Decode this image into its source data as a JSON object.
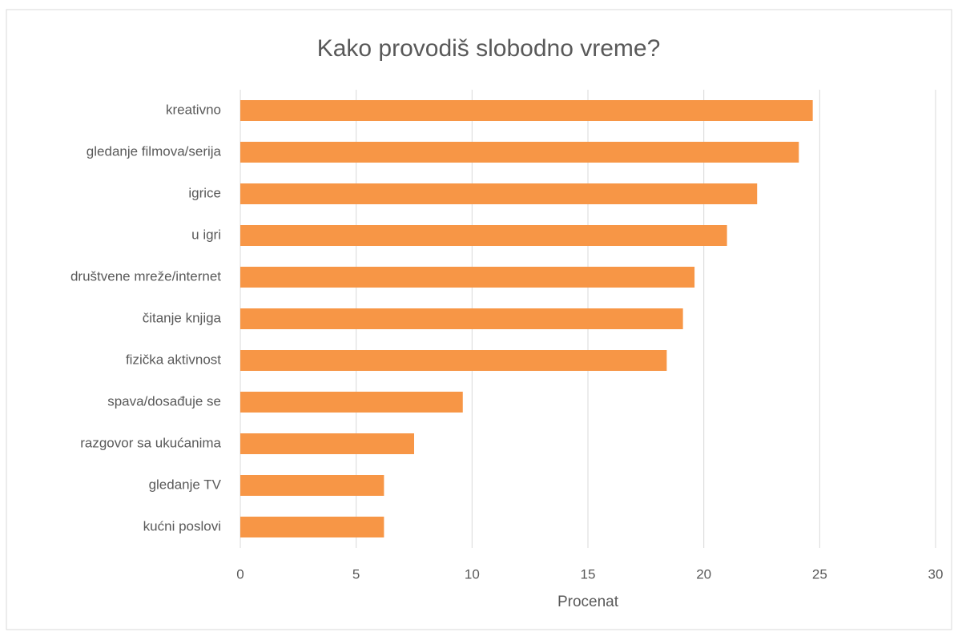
{
  "chart_data": {
    "type": "bar",
    "orientation": "horizontal",
    "title": "Kako provodiš slobodno vreme?",
    "x_label": "Procenat",
    "categories": [
      "kreativno",
      "gledanje filmova/serija",
      "igrice",
      "u igri",
      "društvene mreže/internet",
      "čitanje knjiga",
      "fizička aktivnost",
      "spava/dosađuje se",
      "razgovor sa ukućanima",
      "gledanje TV",
      "kućni poslovi"
    ],
    "values": [
      24.7,
      24.1,
      22.3,
      21.0,
      19.6,
      19.1,
      18.4,
      9.6,
      7.5,
      6.2,
      6.2
    ],
    "color": "#f79646",
    "xlim": [
      0,
      30
    ],
    "xticks": [
      0,
      5,
      10,
      15,
      20,
      25,
      30
    ],
    "grid": true
  }
}
